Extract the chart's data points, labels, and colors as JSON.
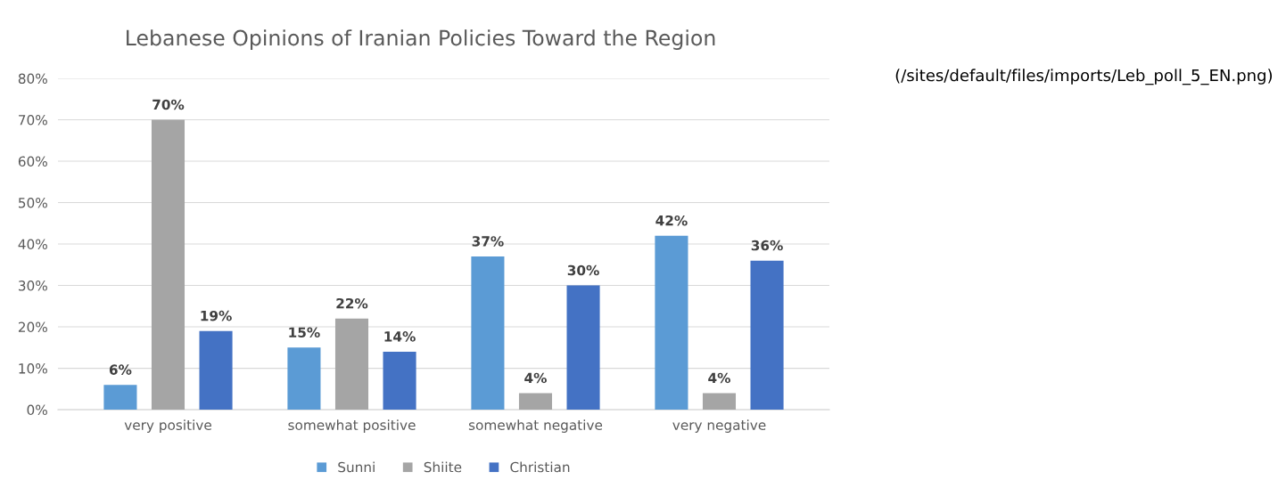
{
  "chart_data": {
    "type": "bar",
    "title": "Lebanese Opinions of Iranian Policies Toward the Region",
    "categories": [
      "very positive",
      "somewhat positive",
      "somewhat negative",
      "very negative"
    ],
    "series": [
      {
        "name": "Sunni",
        "color": "#5b9bd5",
        "values": [
          6,
          15,
          37,
          42
        ],
        "value_labels": [
          "6%",
          "15%",
          "37%",
          "42%"
        ]
      },
      {
        "name": "Shiite",
        "color": "#a5a5a5",
        "values": [
          70,
          22,
          4,
          4
        ],
        "value_labels": [
          "70%",
          "22%",
          "4%",
          "4%"
        ]
      },
      {
        "name": "Christian",
        "color": "#4472c4",
        "values": [
          19,
          14,
          30,
          36
        ],
        "value_labels": [
          "19%",
          "14%",
          "30%",
          "36%"
        ]
      }
    ],
    "ylim": [
      0,
      80
    ],
    "yticks": [
      {
        "value": 0,
        "label": "0%"
      },
      {
        "value": 10,
        "label": "10%"
      },
      {
        "value": 20,
        "label": "20%"
      },
      {
        "value": 30,
        "label": "30%"
      },
      {
        "value": 40,
        "label": "40%"
      },
      {
        "value": 50,
        "label": "50%"
      },
      {
        "value": 60,
        "label": "60%"
      },
      {
        "value": 70,
        "label": "70%"
      },
      {
        "value": 80,
        "label": "80%"
      }
    ],
    "grid": "y",
    "legend": "bottom",
    "annotations": [
      "(/sites/default/files/imports/Leb_poll_5_EN.png)"
    ]
  }
}
